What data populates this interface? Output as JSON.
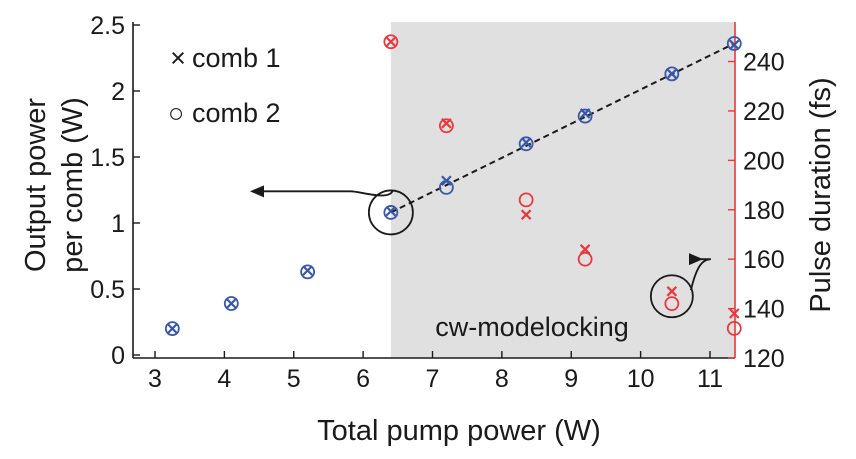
{
  "chart_data": {
    "type": "scatter",
    "xlabel": "Total pump power (W)",
    "ylabel_lines": [
      "Output power",
      "per comb (W)"
    ],
    "ylabel_right": "Pulse duration (fs)",
    "xlim": [
      3,
      11.5
    ],
    "ylim": [
      0,
      2.5
    ],
    "ylim_right": [
      120,
      256
    ],
    "xticks": [
      3,
      4,
      5,
      6,
      7,
      8,
      9,
      10,
      11
    ],
    "yticks": [
      "0",
      "0.5",
      "1",
      "1.5",
      "2",
      "2.5"
    ],
    "yticks_right": [
      120,
      140,
      160,
      180,
      200,
      220,
      240
    ],
    "shaded_region": {
      "x_start": 6.4,
      "x_end": 11.5,
      "label": "cw-modelocking",
      "color": "#e0e0e0"
    },
    "legend": {
      "position": "top-left",
      "entries": [
        {
          "marker": "×",
          "label": "comb 1"
        },
        {
          "marker": "○",
          "label": "comb 2"
        }
      ]
    },
    "colors": {
      "left_axis_series": "#3a56a8",
      "right_axis_series": "#e8383d",
      "right_axis": "#e8383d"
    },
    "series": [
      {
        "axis": "left",
        "marker": "x",
        "x": [
          3.25,
          4.1,
          5.2,
          6.4,
          7.2,
          8.35,
          9.2,
          10.45,
          11.35
        ],
        "y": [
          0.2,
          0.39,
          0.64,
          1.09,
          1.32,
          1.61,
          1.83,
          2.13,
          2.35
        ]
      },
      {
        "axis": "left",
        "marker": "o",
        "x": [
          3.25,
          4.1,
          5.2,
          6.4,
          7.2,
          8.35,
          9.2,
          10.45,
          11.35
        ],
        "y": [
          0.2,
          0.39,
          0.63,
          1.08,
          1.27,
          1.6,
          1.81,
          2.13,
          2.36
        ]
      },
      {
        "axis": "right",
        "marker": "x",
        "x": [
          6.4,
          7.2,
          8.35,
          9.2,
          10.45,
          11.35
        ],
        "y": [
          248,
          215,
          178,
          164,
          147,
          138
        ]
      },
      {
        "axis": "right",
        "marker": "o",
        "x": [
          6.4,
          7.2,
          8.35,
          9.2,
          10.45,
          11.35
        ],
        "y": [
          248,
          214,
          184,
          160,
          142,
          132
        ]
      }
    ],
    "fit_line": {
      "style": "dashed",
      "color": "#1a1a1a",
      "x": [
        6.4,
        11.35
      ],
      "y": [
        1.08,
        2.36
      ]
    },
    "annotations": [
      {
        "type": "circle-arrow",
        "axis": "left",
        "x": 6.4,
        "y": 1.08,
        "arrow": "left"
      },
      {
        "type": "circle-arrow",
        "axis": "right",
        "x": 10.45,
        "y": 145,
        "arrow": "right"
      }
    ]
  }
}
